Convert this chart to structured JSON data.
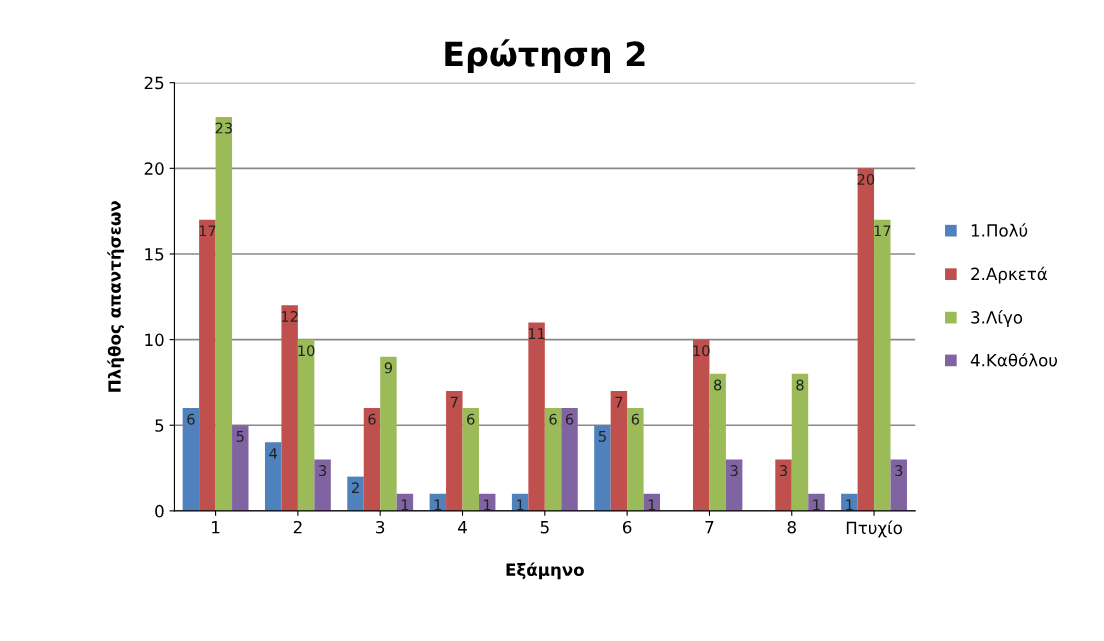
{
  "chart_data": {
    "type": "bar",
    "title": "Ερώτηση 2",
    "xlabel": "Εξάμηνο",
    "ylabel": "Πλήθος απαντήσεων",
    "categories": [
      "1",
      "2",
      "3",
      "4",
      "5",
      "6",
      "7",
      "8",
      "Πτυχίο"
    ],
    "series": [
      {
        "name": "1.Πολύ",
        "color": "#4f81bd",
        "values": [
          6,
          4,
          2,
          1,
          1,
          5,
          0,
          0,
          1
        ],
        "value_labels": [
          "6",
          "4",
          "2",
          "1",
          "1",
          "5",
          null,
          null,
          "1"
        ]
      },
      {
        "name": "2.Αρκετά",
        "color": "#c0504d",
        "values": [
          17,
          12,
          6,
          7,
          11,
          7,
          10,
          3,
          20
        ],
        "value_labels": [
          "17",
          "12",
          "6",
          "7",
          "11",
          "7",
          "10",
          "3",
          "20"
        ]
      },
      {
        "name": "3.Λίγο",
        "color": "#9bbb59",
        "values": [
          23,
          10,
          9,
          6,
          6,
          6,
          8,
          8,
          17
        ],
        "value_labels": [
          "23",
          "10",
          "9",
          "6",
          "6",
          "6",
          "8",
          "8",
          "17"
        ]
      },
      {
        "name": "4.Καθόλου",
        "color": "#8064a2",
        "values": [
          5,
          3,
          1,
          1,
          6,
          1,
          3,
          1,
          3
        ],
        "value_labels": [
          "5",
          "3",
          "1",
          "1",
          "6",
          "1",
          "3",
          "1",
          "3"
        ]
      }
    ],
    "ylim": [
      0,
      25
    ],
    "yticks": [
      0,
      5,
      10,
      15,
      20,
      25
    ],
    "grid": "y",
    "legend": "right"
  }
}
